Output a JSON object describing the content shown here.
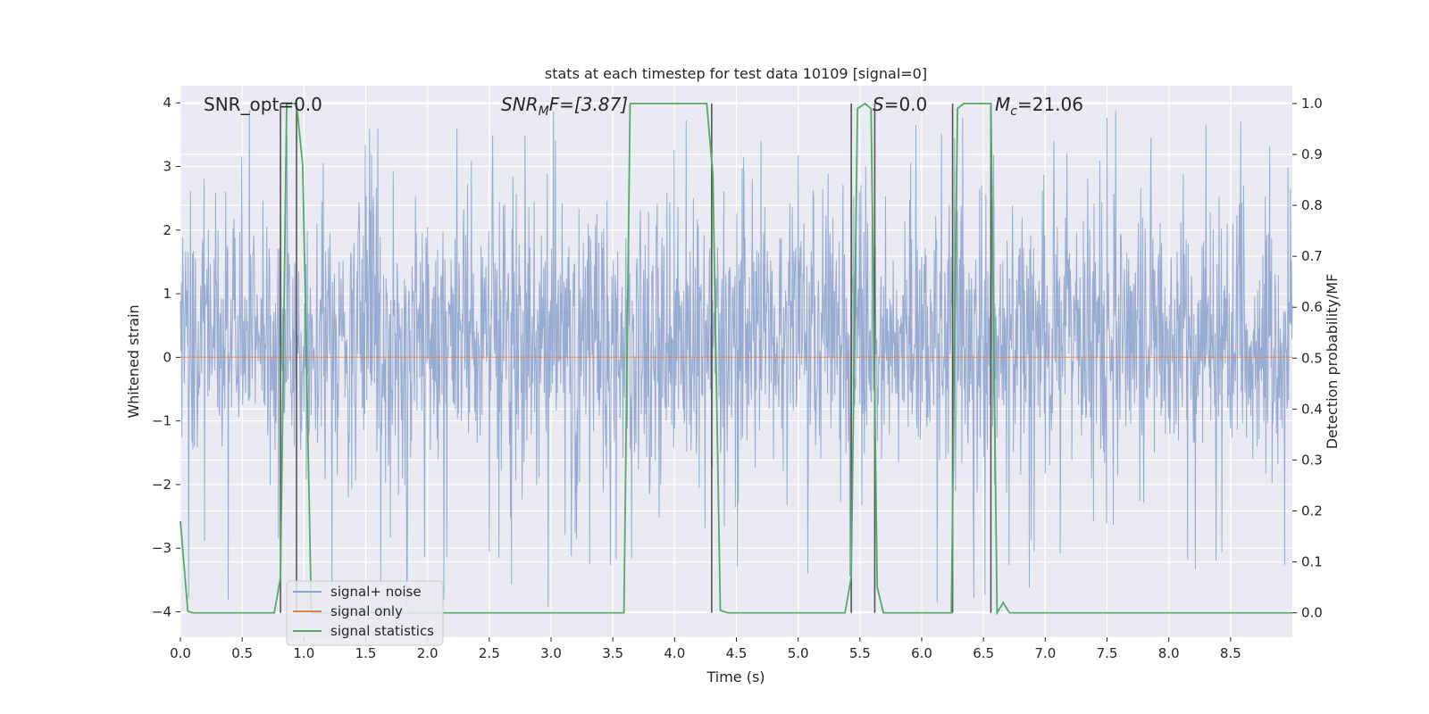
{
  "chart_data": {
    "type": "line",
    "title": "stats at each timestep for test data 10109 [signal=0]",
    "xlabel": "Time (s)",
    "ylabel": "Whitened strain",
    "y2label": "Detection probability/MF",
    "xlim": [
      0.0,
      9.0
    ],
    "ylim": [
      -4.4,
      4.27
    ],
    "y2lim": [
      -0.048,
      1.035
    ],
    "x_ticks": [
      0.0,
      0.5,
      1.0,
      1.5,
      2.0,
      2.5,
      3.0,
      3.5,
      4.0,
      4.5,
      5.0,
      5.5,
      6.0,
      6.5,
      7.0,
      7.5,
      8.0,
      8.5
    ],
    "x_tick_labels": [
      "0.0",
      "0.5",
      "1.0",
      "1.5",
      "2.0",
      "2.5",
      "3.0",
      "3.5",
      "4.0",
      "4.5",
      "5.0",
      "5.5",
      "6.0",
      "6.5",
      "7.0",
      "7.5",
      "8.0",
      "8.5"
    ],
    "y_ticks": [
      4,
      3,
      2,
      1,
      0,
      -1,
      -2,
      -3,
      -4
    ],
    "y_tick_labels": [
      "4",
      "3",
      "2",
      "1",
      "0",
      "−1",
      "−2",
      "−3",
      "−4"
    ],
    "y2_ticks": [
      1.0,
      0.9,
      0.8,
      0.7,
      0.6,
      0.5,
      0.4,
      0.3,
      0.2,
      0.1,
      0.0
    ],
    "y2_tick_labels": [
      "1.0",
      "0.9",
      "0.8",
      "0.7",
      "0.6",
      "0.5",
      "0.4",
      "0.3",
      "0.2",
      "0.1",
      "0.0"
    ],
    "grid": true,
    "legend_position": "lower-left",
    "annotations": {
      "snr_opt": "SNR_opt=0.0",
      "snr_mf_prefix": "SNR",
      "snr_mf_sub": "M",
      "snr_mf_suffix": "F=[3.87]",
      "s_prefix": "S",
      "s_value": "=0.0",
      "mc_prefix": "M",
      "mc_sub": "c",
      "mc_value": "=21.06"
    },
    "series": [
      {
        "name": "signal+ noise",
        "color": "#8fa4cd",
        "kind": "noise",
        "sample_rate": 256,
        "duration": 9.0,
        "typical_range": [
          -1.6,
          2.2
        ],
        "peak_range": [
          -4.0,
          3.9
        ]
      },
      {
        "name": "signal only",
        "color": "#dd8452",
        "x": [
          0.0,
          9.0
        ],
        "y": [
          0.0,
          0.0
        ]
      },
      {
        "name": "signal statistics",
        "color": "#55a868",
        "axis": "y2",
        "x": [
          0.0,
          0.06,
          0.1,
          0.76,
          0.81,
          0.86,
          0.94,
          0.99,
          1.06,
          3.54,
          3.59,
          3.64,
          4.26,
          4.31,
          4.37,
          4.43,
          5.38,
          5.43,
          5.48,
          5.54,
          5.59,
          5.64,
          5.69,
          5.74,
          6.24,
          6.29,
          6.34,
          6.56,
          6.61,
          6.66,
          6.71,
          9.0
        ],
        "y": [
          0.18,
          0.003,
          0.0,
          0.0,
          0.07,
          1.0,
          1.0,
          0.88,
          0.0,
          0.0,
          0.0,
          1.0,
          1.0,
          0.86,
          0.005,
          0.0,
          0.0,
          0.07,
          0.99,
          1.0,
          0.99,
          0.05,
          0.0,
          0.0,
          0.0,
          0.99,
          1.0,
          1.0,
          0.0,
          0.02,
          0.0,
          0.0
        ]
      }
    ],
    "vlines": {
      "color": "#555555",
      "x": [
        0.81,
        0.94,
        4.3,
        5.43,
        5.62,
        6.25,
        6.56
      ]
    }
  }
}
